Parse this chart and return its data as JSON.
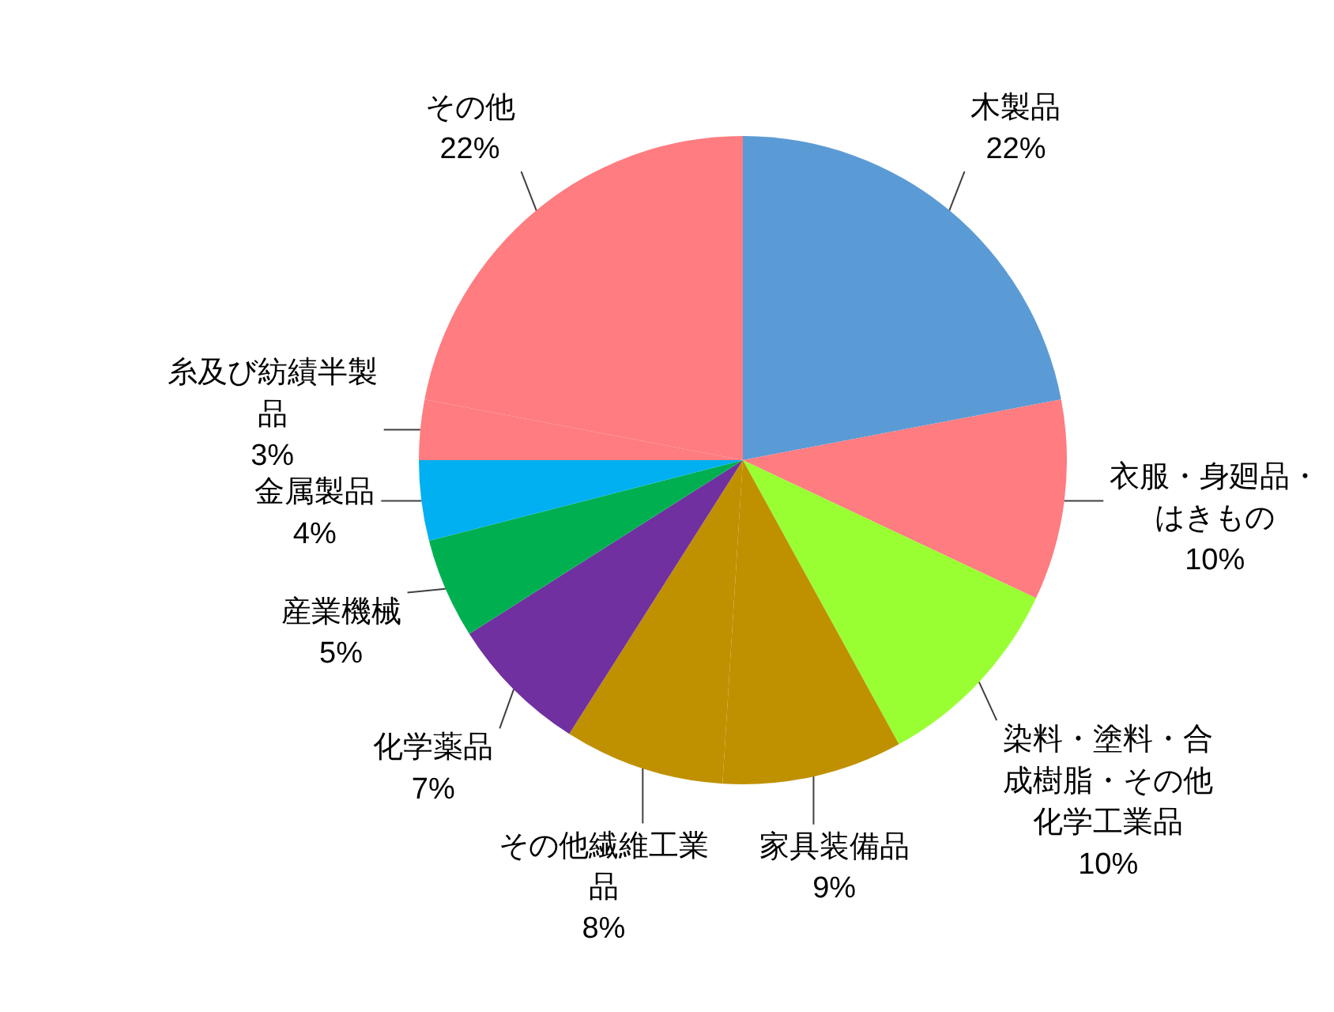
{
  "chart_data": {
    "type": "pie",
    "categories": [
      "木製品",
      "衣服・身廻品・はきもの",
      "染料・塗料・合成樹脂・その他化学工業品",
      "家具装備品",
      "その他繊維工業品",
      "化学薬品",
      "産業機械",
      "金属製品",
      "糸及び紡績半製品",
      "その他"
    ],
    "values": [
      22,
      10,
      10,
      9,
      8,
      7,
      5,
      4,
      3,
      22
    ],
    "colors": [
      "#5b9bd5",
      "#ff7c80",
      "#99ff33",
      "#bf9000",
      "#bf9000",
      "#7030a0",
      "#00b050",
      "#00b0f0",
      "#ff7c80",
      "#ff7c80"
    ],
    "value_labels": [
      "22%",
      "10%",
      "10%",
      "9%",
      "8%",
      "7%",
      "5%",
      "4%",
      "3%",
      "22%"
    ]
  }
}
